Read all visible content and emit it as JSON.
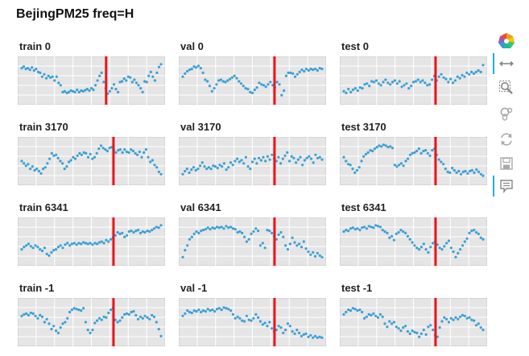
{
  "title": "BejingPM25 freq=H",
  "colors": {
    "point": "#3c9fd6",
    "cut_line": "#e8151b",
    "plot_bg": "#e5e5e5",
    "grid": "#ffffff"
  },
  "toolbar": {
    "tools": [
      {
        "name": "bokeh-logo-icon",
        "active": false
      },
      {
        "name": "pan-icon",
        "active": true
      },
      {
        "name": "box-zoom-icon",
        "active": false
      },
      {
        "name": "wheel-zoom-icon",
        "active": false
      },
      {
        "name": "reset-icon",
        "active": false
      },
      {
        "name": "save-icon",
        "active": false
      },
      {
        "name": "hover-icon",
        "active": true
      }
    ]
  },
  "chart_data": [
    {
      "type": "scatter",
      "title": "train 0",
      "cut_fraction": 0.6,
      "values": [
        0.82,
        0.86,
        0.8,
        0.82,
        0.78,
        0.84,
        0.76,
        0.8,
        0.72,
        0.7,
        0.6,
        0.66,
        0.56,
        0.62,
        0.58,
        0.6,
        0.5,
        0.6,
        0.44,
        0.38,
        0.2,
        0.22,
        0.18,
        0.2,
        0.24,
        0.22,
        0.2,
        0.26,
        0.2,
        0.24,
        0.22,
        0.25,
        0.28,
        0.24,
        0.3,
        0.26,
        0.38,
        0.5,
        0.62,
        0.7,
        0.46,
        0.3,
        0.16,
        0.22,
        0.3,
        0.4,
        0.28,
        0.2,
        0.46,
        0.48,
        0.55,
        0.5,
        0.6,
        0.58,
        0.46,
        0.52,
        0.44,
        0.38,
        0.3,
        0.2,
        0.48,
        0.46,
        0.62,
        0.72,
        0.6,
        0.5,
        0.7,
        0.85,
        0.92
      ]
    },
    {
      "type": "scatter",
      "title": "val 0",
      "cut_fraction": 0.65,
      "values": [
        0.6,
        0.68,
        0.74,
        0.78,
        0.8,
        0.86,
        0.84,
        0.88,
        0.82,
        0.7,
        0.52,
        0.48,
        0.36,
        0.22,
        0.3,
        0.4,
        0.5,
        0.52,
        0.48,
        0.46,
        0.5,
        0.54,
        0.58,
        0.62,
        0.56,
        0.48,
        0.42,
        0.36,
        0.3,
        0.28,
        0.2,
        0.18,
        0.26,
        0.32,
        0.44,
        0.4,
        0.38,
        0.34,
        0.4,
        0.46,
        0.38,
        0.32,
        0.46,
        0.4,
        0.12,
        0.24,
        0.62,
        0.7,
        0.7,
        0.68,
        0.6,
        0.66,
        0.72,
        0.78,
        0.74,
        0.8,
        0.76,
        0.8,
        0.78,
        0.8,
        0.76,
        0.82,
        0.8
      ]
    },
    {
      "type": "scatter",
      "title": "test 0",
      "cut_fraction": 0.65,
      "values": [
        0.22,
        0.18,
        0.28,
        0.2,
        0.26,
        0.3,
        0.24,
        0.32,
        0.3,
        0.4,
        0.42,
        0.36,
        0.48,
        0.46,
        0.5,
        0.42,
        0.38,
        0.46,
        0.52,
        0.44,
        0.4,
        0.46,
        0.5,
        0.42,
        0.48,
        0.34,
        0.38,
        0.42,
        0.3,
        0.36,
        0.46,
        0.48,
        0.52,
        0.46,
        0.5,
        0.44,
        0.38,
        0.4,
        0.52,
        0.62,
        0.5,
        0.6,
        0.66,
        0.58,
        0.54,
        0.46,
        0.54,
        0.44,
        0.5,
        0.6,
        0.56,
        0.64,
        0.6,
        0.7,
        0.66,
        0.72,
        0.68,
        0.72,
        0.76,
        0.72,
        0.9
      ]
    },
    {
      "type": "scatter",
      "title": "train 3170",
      "cut_fraction": 0.65,
      "values": [
        0.5,
        0.44,
        0.38,
        0.42,
        0.3,
        0.36,
        0.26,
        0.3,
        0.24,
        0.18,
        0.3,
        0.34,
        0.44,
        0.56,
        0.7,
        0.64,
        0.66,
        0.58,
        0.5,
        0.44,
        0.3,
        0.36,
        0.48,
        0.52,
        0.6,
        0.56,
        0.64,
        0.7,
        0.66,
        0.72,
        0.7,
        0.6,
        0.68,
        0.56,
        0.6,
        0.7,
        0.82,
        0.9,
        0.84,
        0.8,
        0.76,
        0.84,
        0.86,
        0.78,
        0.72,
        0.78,
        0.8,
        0.72,
        0.8,
        0.74,
        0.72,
        0.8,
        0.76,
        0.7,
        0.66,
        0.74,
        0.6,
        0.72,
        0.8,
        0.6,
        0.48,
        0.52,
        0.4,
        0.34,
        0.22,
        0.16
      ]
    },
    {
      "type": "scatter",
      "title": "val 3170",
      "cut_fraction": 0.65,
      "values": [
        0.16,
        0.24,
        0.3,
        0.2,
        0.28,
        0.34,
        0.26,
        0.3,
        0.38,
        0.46,
        0.36,
        0.3,
        0.34,
        0.3,
        0.38,
        0.36,
        0.32,
        0.4,
        0.36,
        0.44,
        0.28,
        0.34,
        0.46,
        0.4,
        0.5,
        0.56,
        0.48,
        0.52,
        0.44,
        0.6,
        0.36,
        0.3,
        0.48,
        0.56,
        0.44,
        0.58,
        0.52,
        0.6,
        0.5,
        0.62,
        0.54,
        0.66,
        0.56,
        0.5,
        0.6,
        0.44,
        0.56,
        0.64,
        0.72,
        0.5,
        0.62,
        0.58,
        0.46,
        0.54,
        0.6,
        0.4,
        0.52,
        0.58,
        0.62,
        0.56,
        0.46,
        0.66,
        0.58,
        0.6,
        0.54
      ]
    },
    {
      "type": "scatter",
      "title": "test 3170",
      "cut_fraction": 0.65,
      "values": [
        0.6,
        0.5,
        0.42,
        0.4,
        0.3,
        0.2,
        0.26,
        0.34,
        0.5,
        0.62,
        0.68,
        0.72,
        0.78,
        0.76,
        0.82,
        0.86,
        0.9,
        0.88,
        0.92,
        0.9,
        0.86,
        0.88,
        0.84,
        0.4,
        0.36,
        0.4,
        0.44,
        0.38,
        0.5,
        0.56,
        0.66,
        0.7,
        0.72,
        0.76,
        0.82,
        0.7,
        0.76,
        0.78,
        0.7,
        0.64,
        0.78,
        0.82,
        0.66,
        0.54,
        0.48,
        0.42,
        0.3,
        0.22,
        0.2,
        0.32,
        0.26,
        0.2,
        0.24,
        0.16,
        0.22,
        0.24,
        0.18,
        0.24,
        0.26,
        0.2,
        0.28,
        0.22,
        0.16,
        0.12
      ]
    },
    {
      "type": "scatter",
      "title": "train 6341",
      "cut_fraction": 0.65,
      "values": [
        0.3,
        0.36,
        0.4,
        0.44,
        0.38,
        0.34,
        0.4,
        0.36,
        0.3,
        0.26,
        0.34,
        0.18,
        0.14,
        0.22,
        0.28,
        0.3,
        0.36,
        0.4,
        0.34,
        0.42,
        0.46,
        0.4,
        0.44,
        0.46,
        0.42,
        0.46,
        0.44,
        0.48,
        0.46,
        0.44,
        0.46,
        0.42,
        0.46,
        0.44,
        0.48,
        0.5,
        0.46,
        0.54,
        0.5,
        0.56,
        0.6,
        0.66,
        0.74,
        0.7,
        0.72,
        0.62,
        0.66,
        0.76,
        0.78,
        0.74,
        0.78,
        0.8,
        0.72,
        0.76,
        0.74,
        0.78,
        0.76,
        0.8,
        0.84,
        0.88,
        0.86,
        0.92
      ]
    },
    {
      "type": "scatter",
      "title": "val 6341",
      "cut_fraction": 0.65,
      "values": [
        0.1,
        0.28,
        0.4,
        0.56,
        0.62,
        0.7,
        0.76,
        0.72,
        0.78,
        0.8,
        0.82,
        0.86,
        0.82,
        0.86,
        0.84,
        0.88,
        0.86,
        0.88,
        0.84,
        0.9,
        0.86,
        0.88,
        0.84,
        0.82,
        0.74,
        0.76,
        0.72,
        0.62,
        0.5,
        0.56,
        0.7,
        0.76,
        0.84,
        0.78,
        0.4,
        0.46,
        0.34,
        0.8,
        0.78,
        0.72,
        0.64,
        0.56,
        0.68,
        0.74,
        0.62,
        0.4,
        0.3,
        0.44,
        0.6,
        0.48,
        0.4,
        0.44,
        0.36,
        0.5,
        0.32,
        0.24,
        0.16,
        0.22,
        0.12,
        0.2,
        0.14,
        0.1
      ]
    },
    {
      "type": "scatter",
      "title": "test 6341",
      "cut_fraction": 0.65,
      "values": [
        0.76,
        0.8,
        0.78,
        0.84,
        0.86,
        0.82,
        0.84,
        0.8,
        0.86,
        0.88,
        0.84,
        0.9,
        0.88,
        0.86,
        0.92,
        0.9,
        0.88,
        0.8,
        0.76,
        0.72,
        0.6,
        0.64,
        0.54,
        0.7,
        0.74,
        0.8,
        0.76,
        0.72,
        0.64,
        0.56,
        0.48,
        0.4,
        0.34,
        0.3,
        0.36,
        0.44,
        0.3,
        0.22,
        0.36,
        0.46,
        0.5,
        0.42,
        0.34,
        0.3,
        0.38,
        0.46,
        0.52,
        0.34,
        0.24,
        0.1,
        0.2,
        0.3,
        0.4,
        0.5,
        0.58,
        0.72,
        0.78,
        0.8,
        0.74,
        0.7,
        0.6,
        0.56
      ]
    },
    {
      "type": "scatter",
      "title": "train -1",
      "cut_fraction": 0.65,
      "values": [
        0.66,
        0.7,
        0.72,
        0.68,
        0.74,
        0.72,
        0.66,
        0.6,
        0.68,
        0.64,
        0.5,
        0.58,
        0.46,
        0.32,
        0.4,
        0.28,
        0.22,
        0.36,
        0.46,
        0.5,
        0.6,
        0.76,
        0.82,
        0.86,
        0.84,
        0.82,
        0.8,
        0.86,
        0.5,
        0.3,
        0.22,
        0.3,
        0.48,
        0.54,
        0.6,
        0.56,
        0.64,
        0.62,
        0.74,
        0.82,
        0.86,
        0.56,
        0.5,
        0.54,
        0.62,
        0.7,
        0.72,
        0.7,
        0.76,
        0.78,
        0.68,
        0.58,
        0.64,
        0.6,
        0.66,
        0.62,
        0.58,
        0.68,
        0.64,
        0.5,
        0.32,
        0.14
      ]
    },
    {
      "type": "scatter",
      "title": "val -1",
      "cut_fraction": 0.65,
      "values": [
        0.66,
        0.72,
        0.8,
        0.76,
        0.74,
        0.8,
        0.78,
        0.82,
        0.76,
        0.8,
        0.78,
        0.84,
        0.8,
        0.82,
        0.78,
        0.84,
        0.86,
        0.82,
        0.88,
        0.86,
        0.84,
        0.8,
        0.7,
        0.6,
        0.64,
        0.6,
        0.54,
        0.52,
        0.66,
        0.56,
        0.54,
        0.6,
        0.7,
        0.62,
        0.52,
        0.44,
        0.48,
        0.4,
        0.5,
        0.34,
        0.26,
        0.3,
        0.4,
        0.36,
        0.22,
        0.3,
        0.46,
        0.4,
        0.26,
        0.2,
        0.3,
        0.22,
        0.14,
        0.18,
        0.2,
        0.12,
        0.16,
        0.1,
        0.14,
        0.1,
        0.12,
        0.1
      ]
    },
    {
      "type": "scatter",
      "title": "test -1",
      "cut_fraction": 0.65,
      "values": [
        0.7,
        0.76,
        0.82,
        0.8,
        0.86,
        0.84,
        0.8,
        0.82,
        0.76,
        0.6,
        0.64,
        0.7,
        0.68,
        0.72,
        0.66,
        0.62,
        0.7,
        0.64,
        0.46,
        0.38,
        0.52,
        0.46,
        0.5,
        0.38,
        0.34,
        0.28,
        0.36,
        0.4,
        0.26,
        0.2,
        0.28,
        0.24,
        0.22,
        0.12,
        0.2,
        0.3,
        0.18,
        0.38,
        0.42,
        0.3,
        0.16,
        0.12,
        0.36,
        0.52,
        0.62,
        0.58,
        0.5,
        0.6,
        0.56,
        0.62,
        0.58,
        0.64,
        0.68,
        0.66,
        0.6,
        0.62,
        0.56,
        0.54,
        0.42,
        0.46,
        0.36,
        0.3
      ]
    }
  ]
}
